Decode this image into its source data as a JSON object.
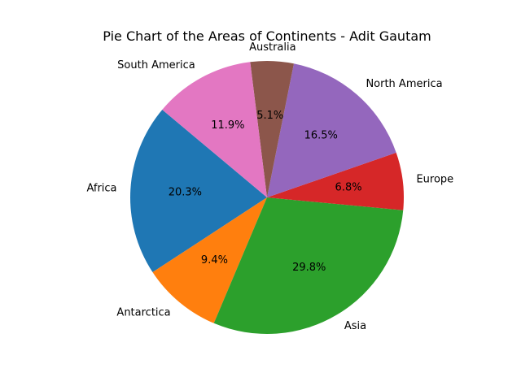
{
  "chart_data": {
    "type": "pie",
    "title": "Pie Chart of the Areas of Continents - Adit Gautam",
    "start_angle_deg": 140,
    "direction": "counterclockwise",
    "label_format": "percent_1dp",
    "slices": [
      {
        "label": "Africa",
        "percent": 20.3,
        "color": "#1f77b4"
      },
      {
        "label": "Antarctica",
        "percent": 9.4,
        "color": "#ff7f0e"
      },
      {
        "label": "Asia",
        "percent": 29.8,
        "color": "#2ca02c"
      },
      {
        "label": "Europe",
        "percent": 6.8,
        "color": "#d62728"
      },
      {
        "label": "North America",
        "percent": 16.5,
        "color": "#9467bd"
      },
      {
        "label": "Australia",
        "percent": 5.1,
        "color": "#8c564b"
      },
      {
        "label": "South America",
        "percent": 11.9,
        "color": "#e377c2"
      }
    ]
  }
}
